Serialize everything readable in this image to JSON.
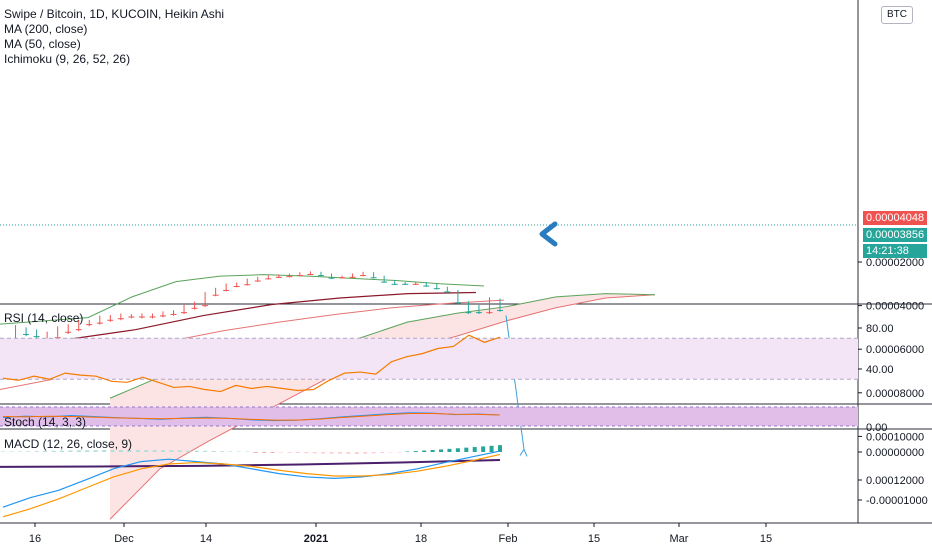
{
  "header": {
    "title": "Swipe / Bitcoin, 1D, KUCOIN, Heikin Ashi",
    "ma200": "MA (200, close)",
    "ma50": "MA (50, close)",
    "ichimoku": "Ichimoku (9, 26, 52, 26)"
  },
  "currency_badge": "BTC",
  "price_tags": {
    "last": "0.00004048",
    "close": "0.00003856",
    "countdown": "14:21:38"
  },
  "panes": {
    "rsi_label": "RSI (14, close)",
    "stoch_label": "Stoch (14, 3, 3)",
    "macd_label": "MACD (12, 26, close, 9)"
  },
  "colors": {
    "up": "#26a69a",
    "down": "#ef5350",
    "ma200": "#4a1f6b",
    "ma50": "#8b1a2b",
    "cloud_fill": "#fce4e4",
    "kijun_red": "#e57373",
    "span_green": "#5aa35a",
    "rsi": "#f57c00",
    "rsi_band": "#f3e5f5",
    "stoch_k": "#2196f3",
    "stoch_d": "#ff6d00",
    "macd_line": "#2196f3",
    "signal_line": "#ff9800",
    "arrow": "#2b7bbf",
    "projection": "#3ba0d8"
  },
  "chart_data": [
    {
      "type": "line",
      "title": "Swipe / Bitcoin, 1D, KUCOIN, Heikin Ashi",
      "x_ticks": [
        "16",
        "Dec",
        "14",
        "2021",
        "18",
        "Feb",
        "15",
        "Mar",
        "15"
      ],
      "y_ticks": [
        2e-05,
        4e-05,
        6e-05,
        8e-05,
        0.0001,
        0.00012
      ],
      "y_tick_labels": [
        "0.00002000",
        "0.00004000",
        "0.00006000",
        "0.00008000",
        "0.00010000",
        "0.00012000"
      ],
      "ylim": [
        1.45e-05,
        0.0001335
      ],
      "series": [
        {
          "name": "MA (200, close)",
          "values": [
            0.000114,
            0.0001138,
            0.0001135,
            0.0001129,
            0.000112,
            0.0001108
          ]
        },
        {
          "name": "MA (50, close)",
          "values": [
            6.2e-05,
            5.55e-05,
            5.1e-05,
            4.45e-05,
            3.95e-05,
            3.65e-05,
            3.45e-05,
            3.4e-05
          ]
        }
      ],
      "candles": [
        [
          5.85e-05,
          5.8e-05
        ],
        [
          5.65e-05,
          5e-05
        ],
        [
          5.1e-05,
          5.3e-05
        ],
        [
          5.2e-05,
          5.4e-05
        ],
        [
          5.5e-05,
          5.3e-05
        ],
        [
          5.45e-05,
          5.05e-05
        ],
        [
          5.2e-05,
          4.95e-05
        ],
        [
          5.08e-05,
          4.75e-05
        ],
        [
          4.85e-05,
          4.75e-05
        ],
        [
          4.78e-05,
          4.55e-05
        ],
        [
          4.65e-05,
          4.52e-05
        ],
        [
          4.58e-05,
          4.45e-05
        ],
        [
          4.5e-05,
          4.48e-05
        ],
        [
          4.5e-05,
          4.45e-05
        ],
        [
          4.5e-05,
          4.45e-05
        ],
        [
          4.45e-05,
          4.35e-05
        ],
        [
          4.38e-05,
          4.3e-05
        ],
        [
          4.3e-05,
          4.05e-05
        ],
        [
          4.1e-05,
          3.9e-05
        ],
        [
          3.98e-05,
          3.45e-05
        ],
        [
          3.5e-05,
          3.25e-05
        ],
        [
          3.28e-05,
          3.05e-05
        ],
        [
          3.1e-05,
          3e-05
        ],
        [
          3.02e-05,
          2.82e-05
        ],
        [
          2.85e-05,
          2.73e-05
        ],
        [
          2.75e-05,
          2.66e-05
        ],
        [
          2.68e-05,
          2.62e-05
        ],
        [
          2.65e-05,
          2.58e-05
        ],
        [
          2.6e-05,
          2.52e-05
        ],
        [
          2.55e-05,
          2.48e-05
        ],
        [
          2.5e-05,
          2.6e-05
        ],
        [
          2.58e-05,
          2.72e-05
        ],
        [
          2.7e-05,
          2.68e-05
        ],
        [
          2.68e-05,
          2.58e-05
        ],
        [
          2.6e-05,
          2.5e-05
        ],
        [
          2.52e-05,
          2.7e-05
        ],
        [
          2.68e-05,
          2.9e-05
        ],
        [
          2.88e-05,
          3e-05
        ],
        [
          2.98e-05,
          3e-05
        ],
        [
          3e-05,
          2.98e-05
        ],
        [
          2.98e-05,
          3.08e-05
        ],
        [
          3.06e-05,
          3.2e-05
        ],
        [
          3.2e-05,
          3.35e-05
        ],
        [
          3.35e-05,
          3.85e-05
        ],
        [
          3.88e-05,
          4.3e-05
        ],
        [
          4.05e-05,
          4.3e-05
        ],
        [
          4.3e-05,
          3.7e-05
        ],
        [
          3.75e-05,
          4.2e-05
        ]
      ],
      "ichimoku_cloud": {
        "span_a": [
          0.000138,
          0.000115,
          0.000102,
          9e-05,
          7.8e-05,
          6.6e-05,
          6e-05,
          5.4e-05,
          4.7e-05,
          4.1e-05,
          3.65e-05,
          3.5e-05
        ],
        "span_b": [
          8.25e-05,
          7.28e-05,
          6.66e-05,
          6.4e-05,
          6.12e-05,
          5.52e-05,
          4.76e-05,
          4.35e-05,
          4.05e-05,
          3.6e-05,
          3.45e-05,
          3.5e-05
        ]
      },
      "projection_arrow": {
        "from": [
          4.45e-05
        ],
        "to": [
          0.000106
        ]
      }
    },
    {
      "type": "line",
      "title": "RSI (14, close)",
      "y_ticks": [
        40,
        80
      ],
      "y_tick_labels": [
        "40.00",
        "80.00"
      ],
      "band": [
        30,
        70
      ],
      "series": [
        {
          "name": "RSI (14, close)",
          "values": [
            31,
            29,
            33,
            30,
            36,
            34,
            33,
            28,
            27,
            32,
            27,
            22,
            23,
            20,
            18,
            24,
            21,
            23,
            21,
            19,
            20,
            29,
            36,
            37,
            35,
            47,
            52,
            55,
            60,
            62,
            73,
            66,
            71
          ]
        }
      ]
    },
    {
      "type": "line",
      "title": "Stoch (14, 3, 3)",
      "series": [
        {
          "name": "%K",
          "values": [
            45,
            52,
            48,
            55,
            50,
            44,
            40,
            35,
            42,
            46,
            40,
            32,
            28,
            30,
            38,
            48,
            56,
            64,
            70,
            68,
            60,
            63,
            58
          ]
        },
        {
          "name": "%D",
          "values": [
            50,
            48,
            51,
            50,
            47,
            43,
            40,
            38,
            40,
            42,
            40,
            35,
            31,
            31,
            36,
            45,
            52,
            60,
            66,
            66,
            62,
            61,
            58
          ]
        }
      ]
    },
    {
      "type": "line",
      "title": "MACD (12, 26, close, 9)",
      "y_ticks": [
        0,
        -1e-05
      ],
      "y_tick_labels": [
        "0.00000000",
        "-0.00001000"
      ],
      "series": [
        {
          "name": "MACD",
          "values": [
            -1.15e-05,
            -9.5e-06,
            -8e-06,
            -5.8e-06,
            -3.5e-06,
            -2e-06,
            -1.5e-06,
            -2e-06,
            -2.5e-06,
            -3.5e-06,
            -4.5e-06,
            -5.2e-06,
            -5.5e-06,
            -5.2e-06,
            -4.5e-06,
            -3.5e-06,
            -2.2e-06,
            -1e-06,
            2e-07
          ]
        },
        {
          "name": "Signal",
          "values": [
            -1.35e-05,
            -1.18e-05,
            -9.8e-06,
            -7.5e-06,
            -5.2e-06,
            -3.5e-06,
            -2.5e-06,
            -2.2e-06,
            -2.5e-06,
            -3e-06,
            -3.8e-06,
            -4.5e-06,
            -5e-06,
            -5e-06,
            -4.7e-06,
            -4e-06,
            -3e-06,
            -1.8e-06,
            -5e-07
          ]
        }
      ]
    }
  ]
}
